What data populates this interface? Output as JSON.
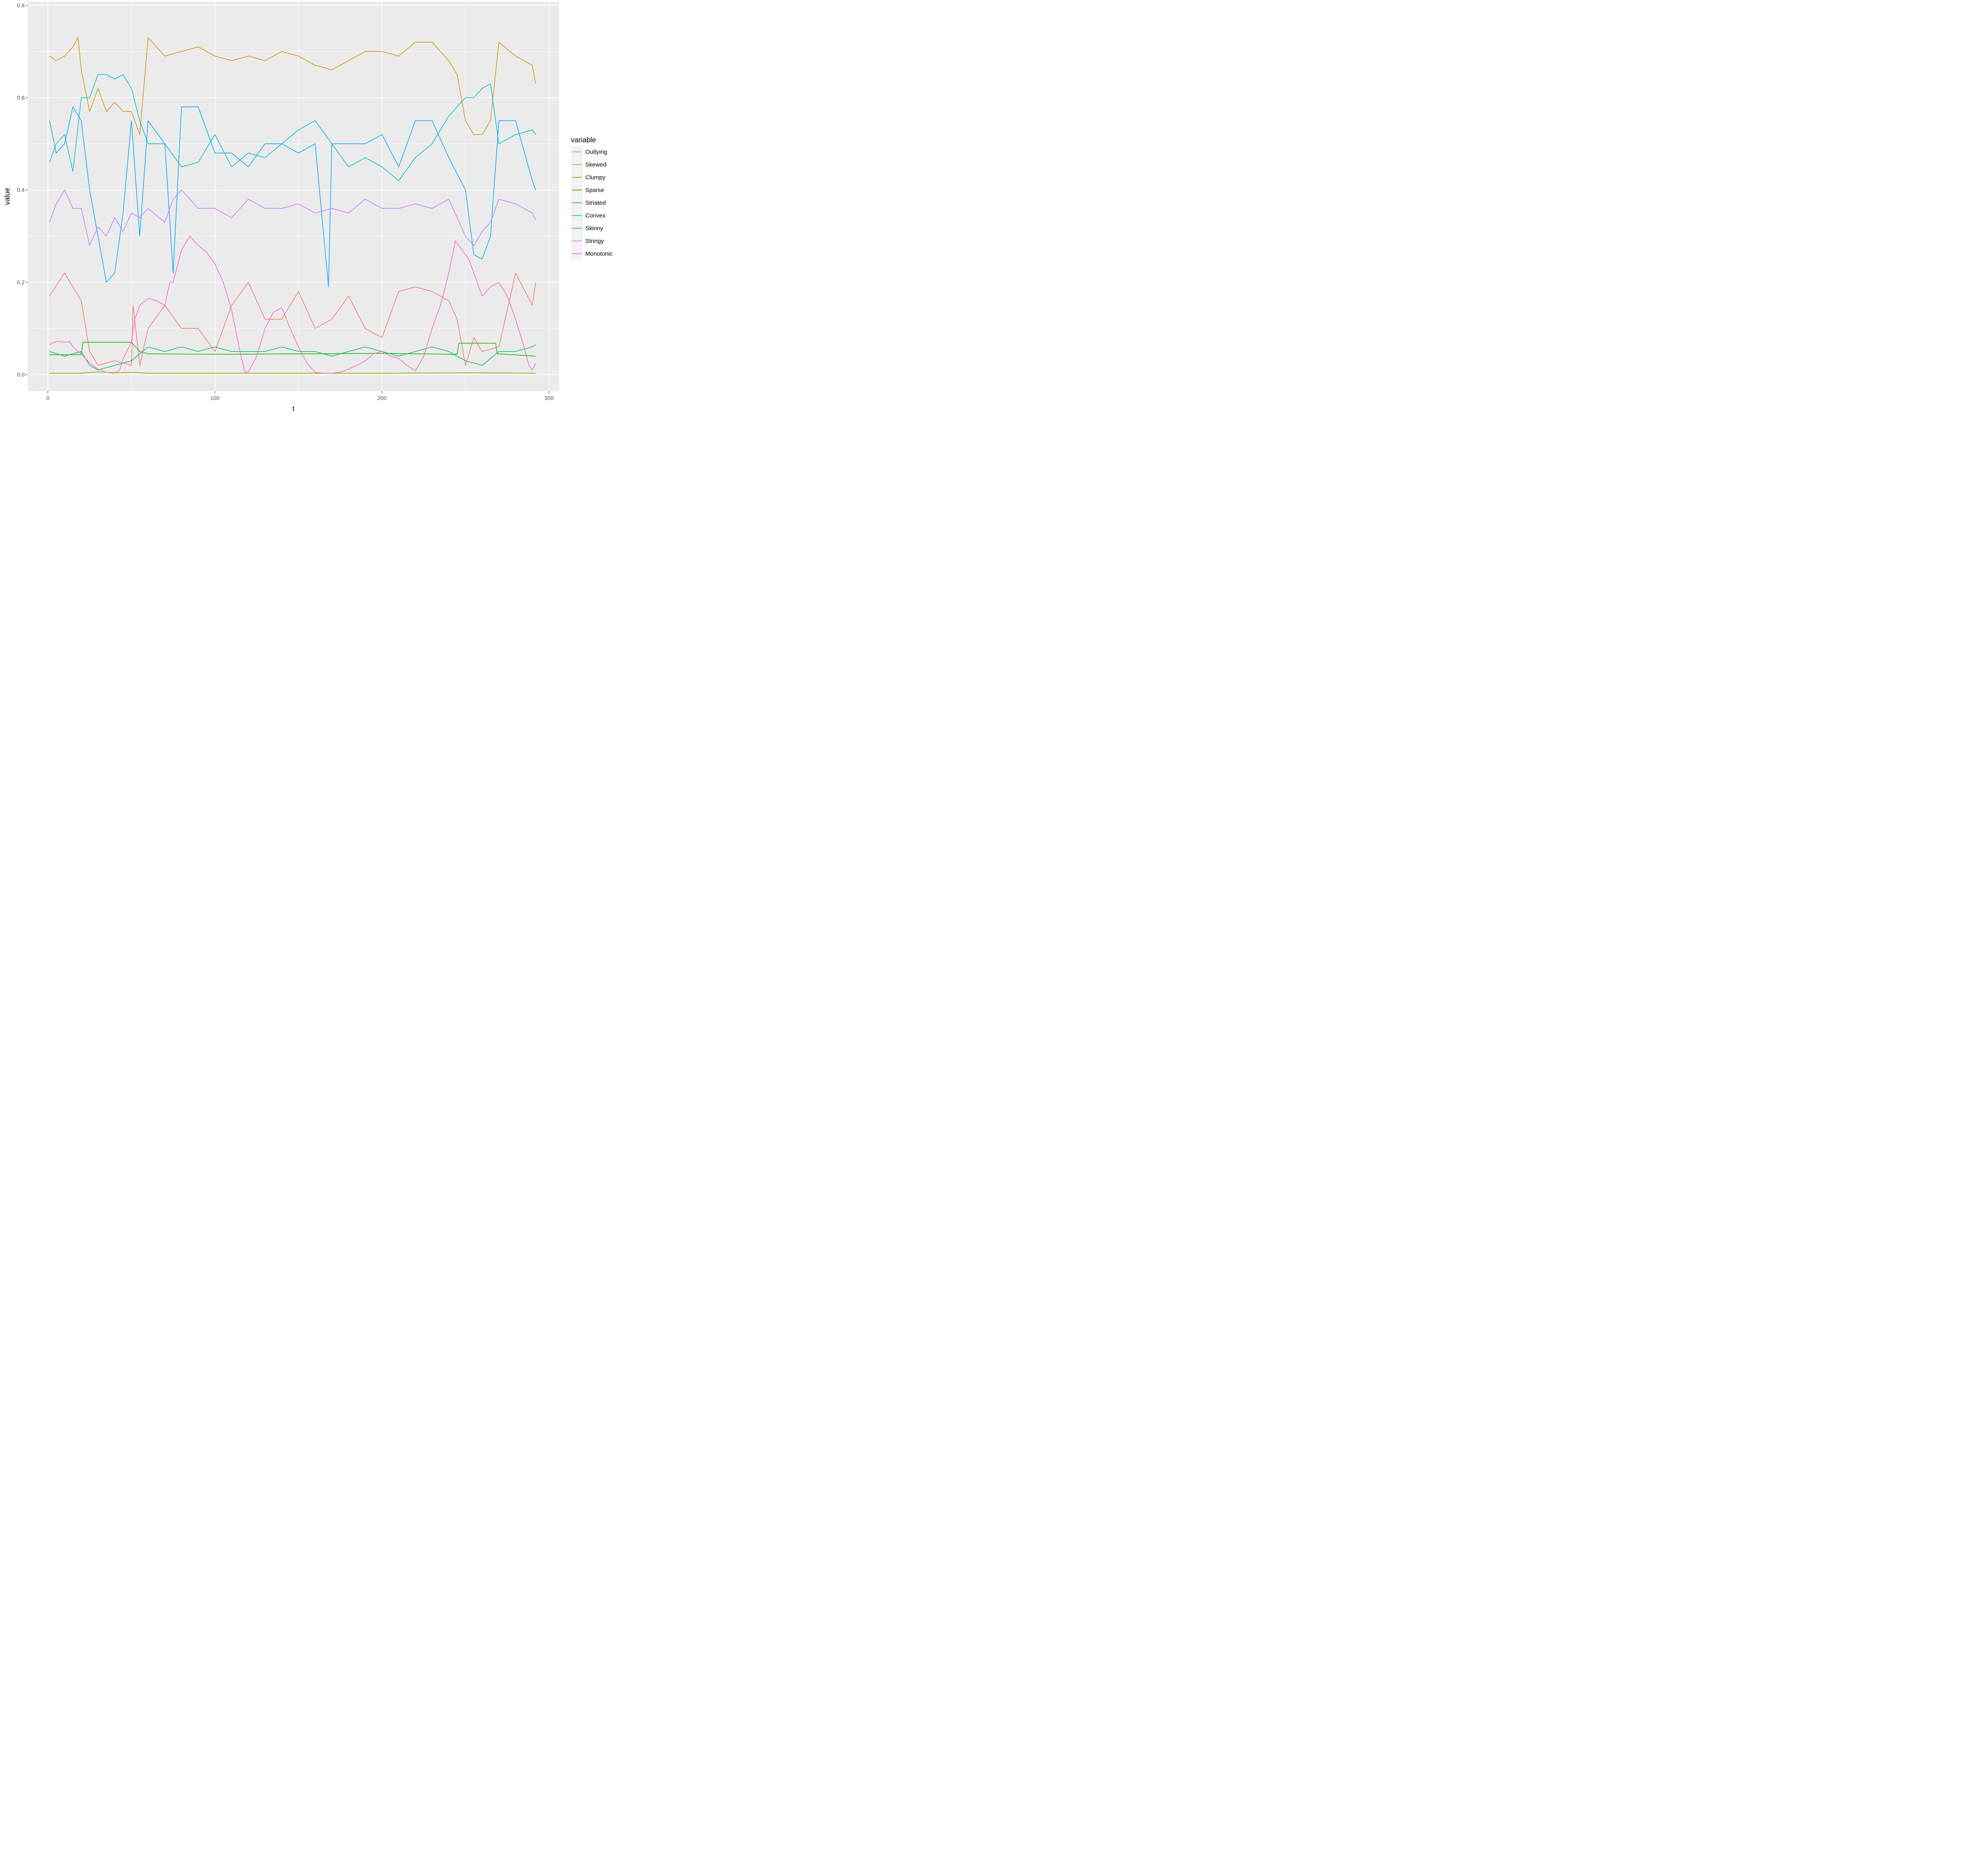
{
  "chart_data": {
    "type": "line",
    "xlabel": "t",
    "ylabel": "value",
    "xlim": [
      -12,
      306
    ],
    "ylim": [
      -0.036,
      0.808
    ],
    "x_ticks": [
      0,
      100,
      200,
      300
    ],
    "x_tick_labels": [
      "0",
      "100",
      "200",
      "300"
    ],
    "y_ticks": [
      0.0,
      0.2,
      0.4,
      0.6,
      0.8
    ],
    "y_tick_labels": [
      "0.0",
      "0.2",
      "0.4",
      "0.6",
      "0.8"
    ],
    "grid": true,
    "background": "#ebebeb",
    "legend": {
      "title": "variable",
      "position": "right"
    },
    "series": [
      {
        "name": "Outlying",
        "color": "#F8766D",
        "x": [
          1,
          10,
          20,
          25,
          30,
          40,
          50,
          51,
          55,
          60,
          70,
          80,
          90,
          100,
          110,
          120,
          130,
          140,
          150,
          160,
          170,
          180,
          190,
          200,
          210,
          220,
          230,
          240,
          245,
          250,
          255,
          260,
          270,
          280,
          290,
          292
        ],
        "y": [
          0.17,
          0.22,
          0.16,
          0.05,
          0.02,
          0.03,
          0.02,
          0.15,
          0.02,
          0.1,
          0.15,
          0.1,
          0.1,
          0.05,
          0.15,
          0.2,
          0.12,
          0.12,
          0.18,
          0.1,
          0.12,
          0.17,
          0.1,
          0.08,
          0.18,
          0.19,
          0.18,
          0.16,
          0.12,
          0.02,
          0.08,
          0.05,
          0.06,
          0.22,
          0.15,
          0.2
        ]
      },
      {
        "name": "Skewed",
        "color": "#CD9600",
        "x": [
          1,
          5,
          10,
          15,
          18,
          20,
          25,
          30,
          35,
          40,
          45,
          50,
          55,
          60,
          70,
          80,
          90,
          100,
          110,
          120,
          130,
          140,
          150,
          160,
          170,
          180,
          190,
          200,
          210,
          220,
          230,
          240,
          245,
          250,
          255,
          260,
          265,
          270,
          280,
          290,
          292
        ],
        "y": [
          0.69,
          0.68,
          0.69,
          0.71,
          0.73,
          0.66,
          0.57,
          0.62,
          0.57,
          0.59,
          0.57,
          0.57,
          0.52,
          0.73,
          0.69,
          0.7,
          0.71,
          0.69,
          0.68,
          0.69,
          0.68,
          0.7,
          0.69,
          0.67,
          0.66,
          0.68,
          0.7,
          0.7,
          0.69,
          0.72,
          0.72,
          0.68,
          0.65,
          0.55,
          0.52,
          0.52,
          0.55,
          0.72,
          0.69,
          0.67,
          0.63
        ]
      },
      {
        "name": "Clumpy",
        "color": "#7CAE00",
        "x": [
          1,
          20,
          30,
          40,
          50,
          60,
          100,
          150,
          200,
          250,
          292
        ],
        "y": [
          0.003,
          0.003,
          0.006,
          0.004,
          0.005,
          0.003,
          0.003,
          0.003,
          0.003,
          0.004,
          0.003
        ]
      },
      {
        "name": "Sparse",
        "color": "#0CB702",
        "x": [
          1,
          20,
          21,
          50,
          55,
          60,
          100,
          150,
          200,
          245,
          246,
          268,
          269,
          292
        ],
        "y": [
          0.043,
          0.043,
          0.07,
          0.07,
          0.05,
          0.045,
          0.044,
          0.045,
          0.046,
          0.044,
          0.068,
          0.068,
          0.045,
          0.04
        ]
      },
      {
        "name": "Striated",
        "color": "#00BE67",
        "x": [
          1,
          10,
          20,
          25,
          30,
          40,
          50,
          60,
          70,
          80,
          90,
          100,
          110,
          120,
          130,
          140,
          150,
          160,
          170,
          180,
          190,
          200,
          210,
          220,
          230,
          240,
          250,
          260,
          270,
          280,
          290,
          292
        ],
        "y": [
          0.05,
          0.04,
          0.05,
          0.02,
          0.01,
          0.02,
          0.03,
          0.06,
          0.05,
          0.06,
          0.05,
          0.06,
          0.05,
          0.05,
          0.05,
          0.06,
          0.05,
          0.05,
          0.04,
          0.05,
          0.06,
          0.05,
          0.04,
          0.05,
          0.06,
          0.05,
          0.03,
          0.02,
          0.05,
          0.05,
          0.06,
          0.065
        ]
      },
      {
        "name": "Convex",
        "color": "#00BFC4",
        "x": [
          1,
          5,
          10,
          15,
          20,
          25,
          30,
          35,
          40,
          45,
          50,
          55,
          60,
          70,
          80,
          90,
          100,
          110,
          120,
          130,
          140,
          150,
          160,
          170,
          180,
          190,
          200,
          210,
          220,
          230,
          240,
          250,
          255,
          260,
          265,
          270,
          280,
          290,
          292
        ],
        "y": [
          0.46,
          0.5,
          0.52,
          0.44,
          0.6,
          0.6,
          0.65,
          0.65,
          0.64,
          0.65,
          0.62,
          0.55,
          0.5,
          0.5,
          0.45,
          0.46,
          0.52,
          0.45,
          0.48,
          0.47,
          0.5,
          0.53,
          0.55,
          0.5,
          0.45,
          0.47,
          0.45,
          0.42,
          0.47,
          0.5,
          0.56,
          0.6,
          0.6,
          0.62,
          0.63,
          0.5,
          0.52,
          0.53,
          0.52
        ]
      },
      {
        "name": "Skinny",
        "color": "#00A9FF",
        "x": [
          1,
          5,
          10,
          15,
          20,
          25,
          30,
          35,
          40,
          45,
          50,
          55,
          60,
          70,
          75,
          80,
          90,
          100,
          110,
          120,
          130,
          140,
          150,
          160,
          168,
          170,
          180,
          190,
          200,
          210,
          220,
          230,
          240,
          250,
          255,
          260,
          265,
          270,
          280,
          290,
          292
        ],
        "y": [
          0.55,
          0.48,
          0.5,
          0.58,
          0.55,
          0.4,
          0.3,
          0.2,
          0.22,
          0.35,
          0.55,
          0.3,
          0.55,
          0.5,
          0.22,
          0.58,
          0.58,
          0.48,
          0.48,
          0.45,
          0.5,
          0.5,
          0.48,
          0.5,
          0.19,
          0.5,
          0.5,
          0.5,
          0.52,
          0.45,
          0.55,
          0.55,
          0.47,
          0.4,
          0.26,
          0.25,
          0.3,
          0.55,
          0.55,
          0.42,
          0.4
        ]
      },
      {
        "name": "Stringy",
        "color": "#C77CFF",
        "x": [
          1,
          5,
          10,
          15,
          20,
          25,
          30,
          35,
          40,
          45,
          50,
          55,
          60,
          70,
          75,
          80,
          90,
          100,
          110,
          120,
          130,
          140,
          150,
          160,
          170,
          180,
          190,
          200,
          210,
          220,
          230,
          240,
          250,
          255,
          260,
          265,
          270,
          280,
          290,
          292
        ],
        "y": [
          0.33,
          0.37,
          0.4,
          0.36,
          0.36,
          0.28,
          0.32,
          0.3,
          0.34,
          0.31,
          0.35,
          0.34,
          0.36,
          0.33,
          0.38,
          0.4,
          0.36,
          0.36,
          0.34,
          0.38,
          0.36,
          0.36,
          0.37,
          0.35,
          0.36,
          0.35,
          0.38,
          0.36,
          0.36,
          0.37,
          0.36,
          0.38,
          0.3,
          0.28,
          0.31,
          0.33,
          0.38,
          0.37,
          0.35,
          0.335
        ]
      },
      {
        "name": "Monotonic",
        "color": "#FF61CC",
        "x": [
          1,
          5,
          10,
          13,
          15,
          20,
          25,
          30,
          35,
          40,
          43,
          45,
          50,
          52,
          55,
          60,
          65,
          70,
          73,
          75,
          80,
          85,
          90,
          95,
          100,
          105,
          110,
          115,
          118,
          120,
          125,
          130,
          135,
          140,
          145,
          150,
          155,
          160,
          165,
          170,
          175,
          180,
          185,
          190,
          195,
          200,
          205,
          210,
          215,
          220,
          225,
          230,
          235,
          240,
          244,
          248,
          252,
          255,
          260,
          265,
          270,
          275,
          280,
          285,
          288,
          290,
          292
        ],
        "y": [
          0.065,
          0.072,
          0.07,
          0.072,
          0.06,
          0.045,
          0.025,
          0.012,
          0.005,
          0.003,
          0.01,
          0.035,
          0.07,
          0.12,
          0.15,
          0.165,
          0.16,
          0.15,
          0.2,
          0.2,
          0.27,
          0.3,
          0.28,
          0.265,
          0.24,
          0.2,
          0.14,
          0.05,
          0.005,
          0.005,
          0.04,
          0.1,
          0.135,
          0.145,
          0.1,
          0.06,
          0.025,
          0.005,
          0.003,
          0.003,
          0.005,
          0.012,
          0.02,
          0.03,
          0.045,
          0.05,
          0.04,
          0.035,
          0.02,
          0.008,
          0.04,
          0.1,
          0.15,
          0.22,
          0.29,
          0.27,
          0.25,
          0.22,
          0.17,
          0.19,
          0.2,
          0.17,
          0.12,
          0.06,
          0.02,
          0.01,
          0.025
        ]
      }
    ]
  }
}
